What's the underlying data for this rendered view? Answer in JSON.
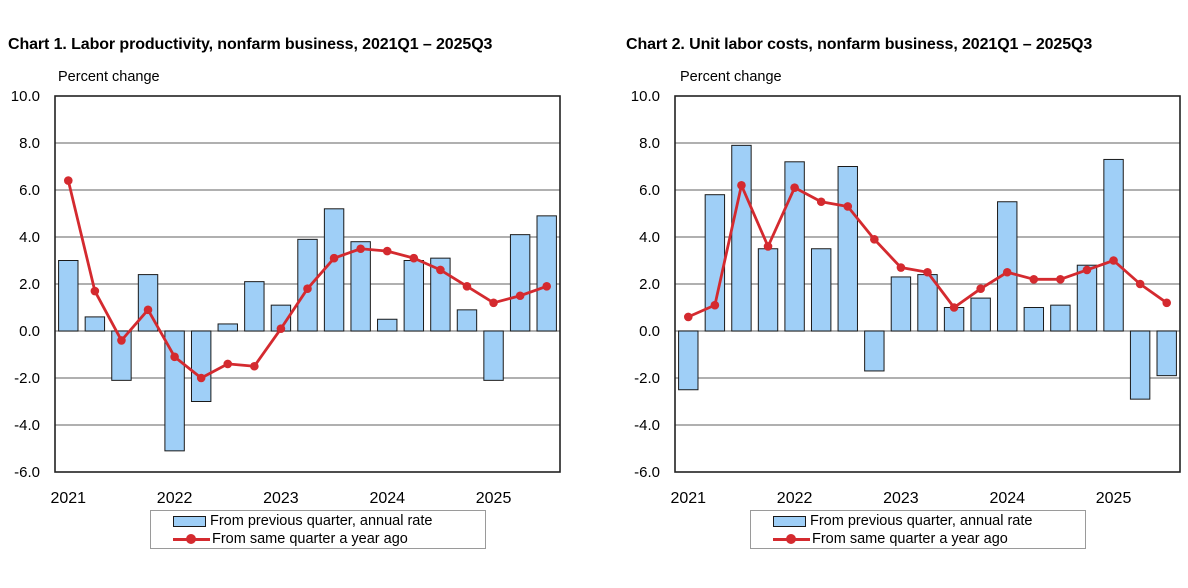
{
  "charts": [
    {
      "title": "Chart  1. Labor productivity, nonfarm business, 2021Q1 – 2025Q3",
      "ylabel": "Percent change",
      "legend": {
        "bar_label": "From previous quarter, annual rate",
        "line_label": "From same quarter a year ago"
      }
    },
    {
      "title": "Chart  2. Unit labor costs, nonfarm business, 2021Q1 – 2025Q3",
      "ylabel": "Percent change",
      "legend": {
        "bar_label": "From previous quarter, annual rate",
        "line_label": "From same quarter a year ago"
      }
    }
  ],
  "colors": {
    "bar_fill": "#9fcff7",
    "bar_stroke": "#1a1a1a",
    "line": "#d42a2f",
    "grid": "#808080"
  },
  "chart_data": [
    {
      "type": "bar",
      "title": "Chart  1. Labor productivity, nonfarm business, 2021Q1 – 2025Q3",
      "ylabel": "Percent change",
      "ylim": [
        -6.0,
        10.0
      ],
      "yticks": [
        "10.0",
        "8.0",
        "6.0",
        "4.0",
        "2.0",
        "0.0",
        "-2.0",
        "-4.0",
        "-6.0"
      ],
      "x_tick_labels": [
        "2021",
        "2022",
        "2023",
        "2024",
        "2025"
      ],
      "categories": [
        "2021Q1",
        "2021Q2",
        "2021Q3",
        "2021Q4",
        "2022Q1",
        "2022Q2",
        "2022Q3",
        "2022Q4",
        "2023Q1",
        "2023Q2",
        "2023Q3",
        "2023Q4",
        "2024Q1",
        "2024Q2",
        "2024Q3",
        "2024Q4",
        "2025Q1",
        "2025Q2",
        "2025Q3"
      ],
      "grid": true,
      "legend_position": "bottom-center",
      "series": [
        {
          "name": "From previous quarter, annual rate",
          "type": "bar",
          "values": [
            3.0,
            0.6,
            -2.1,
            2.4,
            -5.1,
            -3.0,
            0.3,
            2.1,
            1.1,
            3.9,
            5.2,
            3.8,
            0.5,
            3.0,
            3.1,
            0.9,
            -2.1,
            4.1,
            4.9
          ]
        },
        {
          "name": "From same quarter a year ago",
          "type": "line",
          "values": [
            6.4,
            1.7,
            -0.4,
            0.9,
            -1.1,
            -2.0,
            -1.4,
            -1.5,
            0.1,
            1.8,
            3.1,
            3.5,
            3.4,
            3.1,
            2.6,
            1.9,
            1.2,
            1.5,
            1.9
          ]
        }
      ]
    },
    {
      "type": "bar",
      "title": "Chart  2. Unit labor costs, nonfarm business, 2021Q1 – 2025Q3",
      "ylabel": "Percent change",
      "ylim": [
        -6.0,
        10.0
      ],
      "yticks": [
        "10.0",
        "8.0",
        "6.0",
        "4.0",
        "2.0",
        "0.0",
        "-2.0",
        "-4.0",
        "-6.0"
      ],
      "x_tick_labels": [
        "2021",
        "2022",
        "2023",
        "2024",
        "2025"
      ],
      "categories": [
        "2021Q1",
        "2021Q2",
        "2021Q3",
        "2021Q4",
        "2022Q1",
        "2022Q2",
        "2022Q3",
        "2022Q4",
        "2023Q1",
        "2023Q2",
        "2023Q3",
        "2023Q4",
        "2024Q1",
        "2024Q2",
        "2024Q3",
        "2024Q4",
        "2025Q1",
        "2025Q2",
        "2025Q3"
      ],
      "grid": true,
      "legend_position": "bottom-center",
      "series": [
        {
          "name": "From previous quarter, annual rate",
          "type": "bar",
          "values": [
            -2.5,
            5.8,
            7.9,
            3.5,
            7.2,
            3.5,
            7.0,
            -1.7,
            2.3,
            2.4,
            1.0,
            1.4,
            5.5,
            1.0,
            1.1,
            2.8,
            7.3,
            -2.9,
            -1.9
          ]
        },
        {
          "name": "From same quarter a year ago",
          "type": "line",
          "values": [
            0.6,
            1.1,
            6.2,
            3.6,
            6.1,
            5.5,
            5.3,
            3.9,
            2.7,
            2.5,
            1.0,
            1.8,
            2.5,
            2.2,
            2.2,
            2.6,
            3.0,
            2.0,
            1.2
          ]
        }
      ]
    }
  ]
}
